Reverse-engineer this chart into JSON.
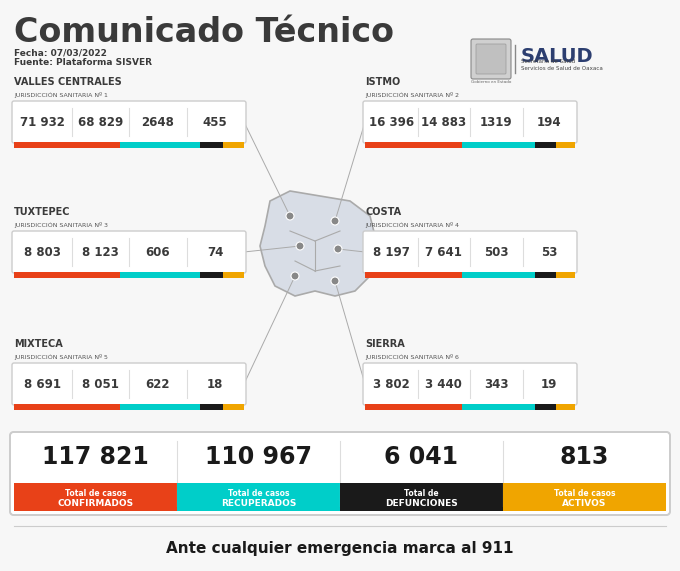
{
  "title": "Comunicado Técnico",
  "fecha": "Fecha: 07/03/2022",
  "fuente": "Fuente: Plataforma SISVER",
  "bg_color": "#f7f7f7",
  "regions": [
    {
      "name": "VALLES CENTRALES",
      "jurisdiccion": "JURISDICCIÓN SANITARIA Nº 1",
      "values": [
        "71 932",
        "68 829",
        "2648",
        "455"
      ],
      "position": "top_left"
    },
    {
      "name": "ISTMO",
      "jurisdiccion": "JURISDICCIÓN SANITARIA Nº 2",
      "values": [
        "16 396",
        "14 883",
        "1319",
        "194"
      ],
      "position": "top_right"
    },
    {
      "name": "TUXTEPEC",
      "jurisdiccion": "JURISDICCIÓN SANITARIA Nº 3",
      "values": [
        "8 803",
        "8 123",
        "606",
        "74"
      ],
      "position": "mid_left"
    },
    {
      "name": "COSTA",
      "jurisdiccion": "JURISDICCIÓN SANITARIA Nº 4",
      "values": [
        "8 197",
        "7 641",
        "503",
        "53"
      ],
      "position": "mid_right"
    },
    {
      "name": "MIXTECA",
      "jurisdiccion": "JURISDICCIÓN SANITARIA Nº 5",
      "values": [
        "8 691",
        "8 051",
        "622",
        "18"
      ],
      "position": "bot_left"
    },
    {
      "name": "SIERRA",
      "jurisdiccion": "JURISDICCIÓN SANITARIA Nº 6",
      "values": [
        "3 802",
        "3 440",
        "343",
        "19"
      ],
      "position": "bot_right"
    }
  ],
  "totals": {
    "values": [
      "117 821",
      "110 967",
      "6 041",
      "813"
    ],
    "labels": [
      "Total de casos\nCONFIRMADOS",
      "Total de casos\nRECUPERADOS",
      "Total de\nDEFUNCIONES",
      "Total de casos\nACTIVOS"
    ],
    "colors": [
      "#e84118",
      "#00cec9",
      "#1a1a1a",
      "#f0a500"
    ]
  },
  "bar_colors": [
    "#e84118",
    "#00cec9",
    "#1a1a1a",
    "#f0a500"
  ],
  "bar_proportions": [
    0.46,
    0.35,
    0.1,
    0.09
  ],
  "footer": "Ante cualquier emergencia marca al 911",
  "title_color": "#3a3a3a",
  "text_color": "#3a3a3a",
  "sub_text_color": "#555555",
  "card_edge_color": "#cccccc",
  "map_color": "#d8dde6",
  "map_line_color": "#aaaaaa",
  "dot_color": "#888888"
}
